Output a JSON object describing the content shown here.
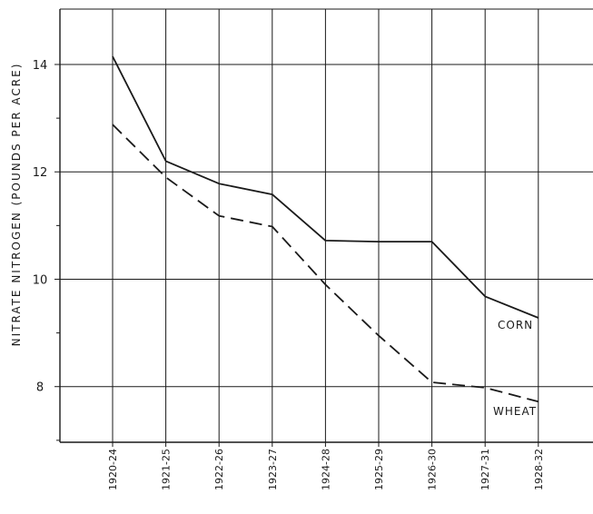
{
  "chart_data": {
    "type": "line",
    "title": "",
    "xlabel": "",
    "ylabel": "NITRATE NITROGEN (POUNDS PER ACRE)",
    "categories": [
      "1920-24",
      "1921-25",
      "1922-26",
      "1923-27",
      "1924-28",
      "1925-29",
      "1926-30",
      "1927-31",
      "1928-32"
    ],
    "ylim": [
      6.9,
      15
    ],
    "yticks": [
      8,
      10,
      12,
      14
    ],
    "ytick_labels": [
      "8",
      "10",
      "12",
      "14"
    ],
    "grid": true,
    "series": [
      {
        "name": "CORN",
        "style": "solid",
        "values": [
          14.15,
          12.2,
          11.78,
          11.58,
          10.72,
          10.7,
          10.7,
          9.68,
          9.28
        ]
      },
      {
        "name": "WHEAT",
        "style": "dashed",
        "values": [
          12.88,
          11.9,
          11.18,
          10.98,
          9.9,
          8.95,
          8.08,
          7.98,
          7.72
        ]
      }
    ],
    "colors": {
      "line": "#1a1a1a",
      "grid": "#1a1a1a"
    }
  }
}
